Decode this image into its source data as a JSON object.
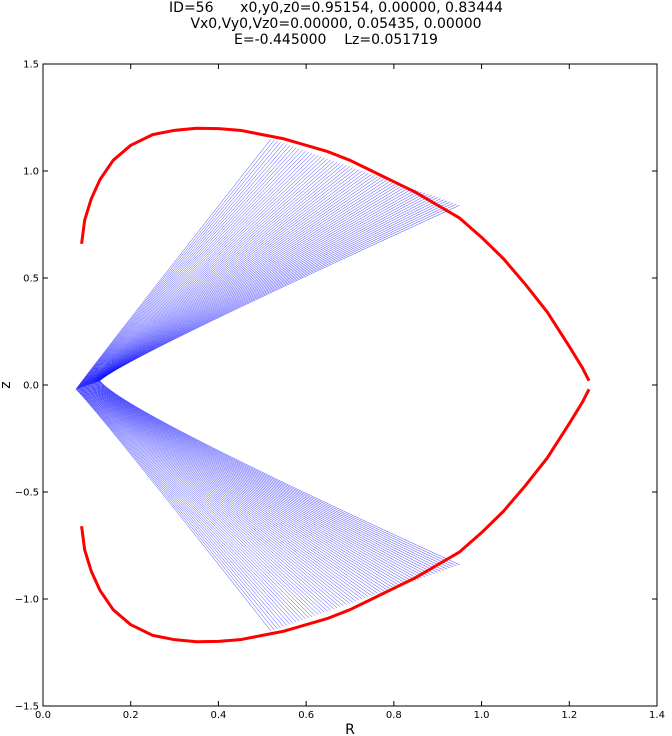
{
  "chart_data": {
    "type": "line",
    "title_lines": [
      "ID=56      x0,y0,z0=0.95154, 0.00000, 0.83444",
      "Vx0,Vy0,Vz0=0.00000, 0.05435, 0.00000",
      "E=-0.445000    Lz=0.051719"
    ],
    "xlabel": "R",
    "ylabel": "z",
    "xlim": [
      0.0,
      1.4
    ],
    "ylim": [
      -1.5,
      1.5
    ],
    "xticks": [
      "0.0",
      "0.2",
      "0.4",
      "0.6",
      "0.8",
      "1.0",
      "1.2",
      "1.4"
    ],
    "yticks": [
      "−1.5",
      "−1.0",
      "−0.5",
      "0.0",
      "0.5",
      "1.0",
      "1.5"
    ],
    "grid": false,
    "colors": {
      "orbit": "#0000ff",
      "boundary": "#ff0000"
    },
    "zero_velocity_curve": {
      "upper": {
        "R": [
          0.088,
          0.095,
          0.11,
          0.13,
          0.16,
          0.2,
          0.25,
          0.3,
          0.35,
          0.4,
          0.45,
          0.5,
          0.55,
          0.6,
          0.65,
          0.7,
          0.75,
          0.8,
          0.85,
          0.9,
          0.95,
          1.0,
          1.05,
          1.1,
          1.15,
          1.2,
          1.23,
          1.245
        ],
        "z": [
          0.66,
          0.77,
          0.87,
          0.96,
          1.05,
          1.12,
          1.17,
          1.19,
          1.2,
          1.198,
          1.19,
          1.17,
          1.15,
          1.12,
          1.09,
          1.05,
          1.0,
          0.95,
          0.9,
          0.84,
          0.78,
          0.69,
          0.59,
          0.47,
          0.34,
          0.18,
          0.08,
          0.02
        ]
      },
      "lower": {
        "R": [
          0.088,
          0.095,
          0.11,
          0.13,
          0.16,
          0.2,
          0.25,
          0.3,
          0.35,
          0.4,
          0.45,
          0.5,
          0.55,
          0.6,
          0.65,
          0.7,
          0.75,
          0.8,
          0.85,
          0.9,
          0.95,
          1.0,
          1.05,
          1.1,
          1.15,
          1.2,
          1.23,
          1.245
        ],
        "z": [
          -0.66,
          -0.77,
          -0.87,
          -0.96,
          -1.05,
          -1.12,
          -1.17,
          -1.19,
          -1.2,
          -1.198,
          -1.19,
          -1.17,
          -1.15,
          -1.12,
          -1.09,
          -1.05,
          -1.0,
          -0.95,
          -0.9,
          -0.84,
          -0.78,
          -0.69,
          -0.59,
          -0.47,
          -0.34,
          -0.18,
          -0.08,
          -0.02
        ]
      }
    },
    "orbit_envelope": {
      "inner_vertex_R": 0.13,
      "outer_vertex_R": 0.075,
      "upper_far_end": [
        [
          0.52,
          1.15
        ],
        [
          0.95,
          0.84
        ]
      ],
      "lower_far_end": [
        [
          0.52,
          -1.15
        ],
        [
          0.95,
          -0.84
        ]
      ],
      "num_segments": 60
    }
  }
}
